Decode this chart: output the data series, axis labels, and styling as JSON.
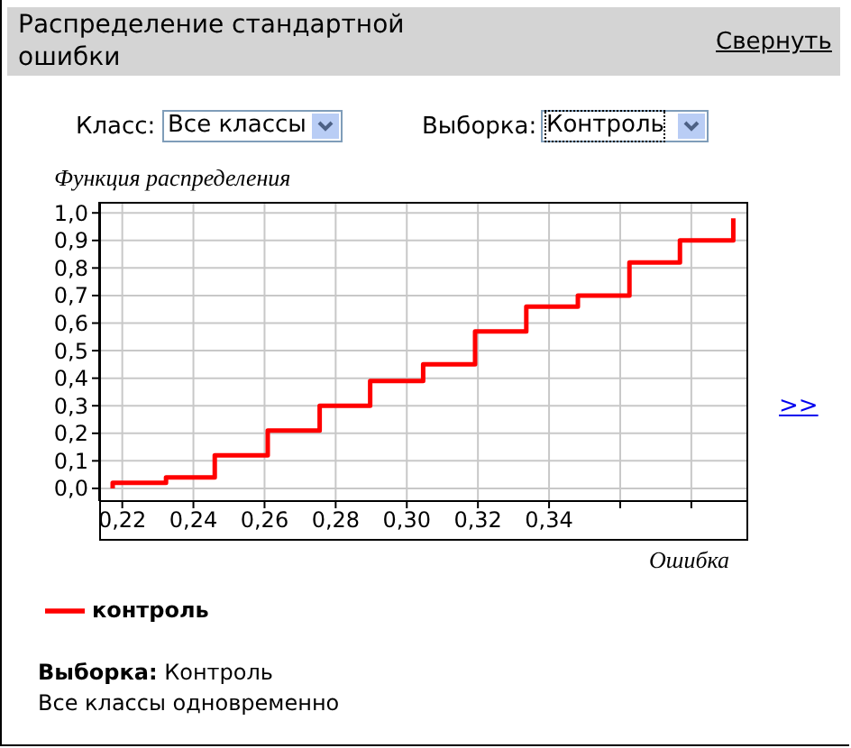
{
  "chart_data": {
    "type": "step",
    "title": "Распределение стандартной ошибки",
    "xlabel": "Ошибка",
    "ylabel": "Функция распределения",
    "annotations": [
      "Свернуть",
      "Класс:",
      "Все классы",
      "Выборка:",
      "Контроль",
      ">>",
      "Выборка:",
      "Контроль",
      "Все классы одновременно"
    ],
    "x": [
      0.2173,
      0.2173,
      0.2323,
      0.246,
      0.2609,
      0.2755,
      0.2897,
      0.3046,
      0.3192,
      0.3336,
      0.3481,
      0.3626,
      0.3768,
      0.3918
    ],
    "series": [
      {
        "name": "контроль",
        "color": "#ff0000",
        "values": [
          0,
          0.02,
          0.04,
          0.12,
          0.21,
          0.3,
          0.39,
          0.45,
          0.57,
          0.66,
          0.7,
          0.82,
          0.9,
          0.98
        ]
      }
    ],
    "xlim": [
      0.2135,
      0.396
    ],
    "xticks": [
      {
        "value": 0.22,
        "label": "0,22"
      },
      {
        "value": 0.24,
        "label": "0,24"
      },
      {
        "value": 0.26,
        "label": "0,26"
      },
      {
        "value": 0.28,
        "label": "0,28"
      },
      {
        "value": 0.3,
        "label": "0,30"
      },
      {
        "value": 0.32,
        "label": "0,32"
      },
      {
        "value": 0.34,
        "label": "0,34"
      },
      {
        "value": 0.36,
        "label": null
      },
      {
        "value": 0.38,
        "label": null
      }
    ],
    "ylim": [
      -0.046,
      1.04
    ],
    "yticks": [
      {
        "value": 0,
        "label": "0,0"
      },
      {
        "value": 0.1,
        "label": "0,1"
      },
      {
        "value": 0.2,
        "label": "0,2"
      },
      {
        "value": 0.3,
        "label": "0,3"
      },
      {
        "value": 0.4,
        "label": "0,4"
      },
      {
        "value": 0.5,
        "label": "0,5"
      },
      {
        "value": 0.6,
        "label": "0,6"
      },
      {
        "value": 0.7,
        "label": "0,7"
      },
      {
        "value": 0.8,
        "label": "0,8"
      },
      {
        "value": 0.9,
        "label": "0,9"
      },
      {
        "value": 1,
        "label": "1,0"
      }
    ],
    "grid": true,
    "legend": "bottom left",
    "marker": "none",
    "line_style": "solid"
  }
}
